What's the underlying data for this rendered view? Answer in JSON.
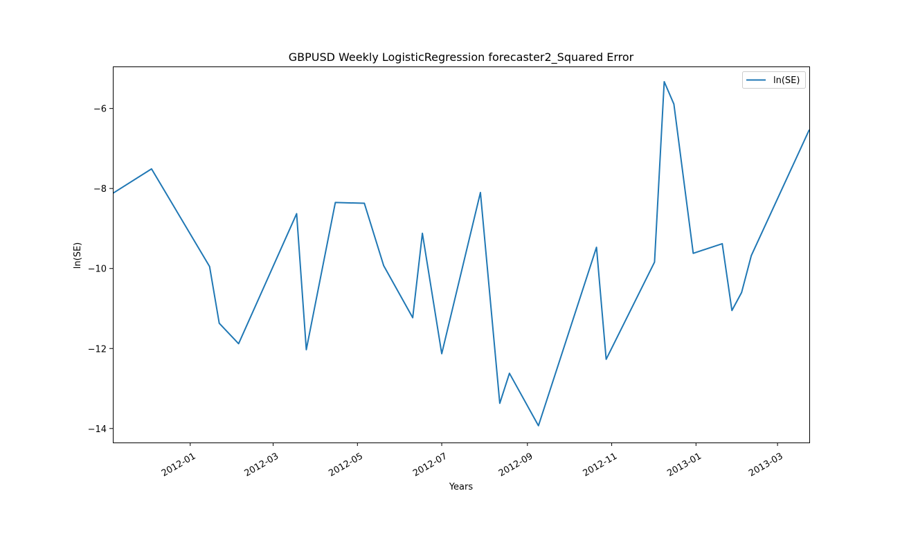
{
  "chart_data": {
    "type": "line",
    "title": "GBPUSD Weekly LogisticRegression forecaster2_Squared Error",
    "xlabel": "Years",
    "ylabel": "ln(SE)",
    "xlim": [
      "2011-11-06",
      "2013-03-24"
    ],
    "ylim": [
      -14.35,
      -4.95
    ],
    "x_ticks": [
      "2012-01-01",
      "2012-03-01",
      "2012-05-01",
      "2012-07-01",
      "2012-09-01",
      "2012-11-01",
      "2013-01-01",
      "2013-03-01"
    ],
    "x_tick_labels": [
      "2012-01",
      "2012-03",
      "2012-05",
      "2012-07",
      "2012-09",
      "2012-11",
      "2013-01",
      "2013-03"
    ],
    "y_ticks": [
      -14,
      -12,
      -10,
      -8,
      -6
    ],
    "y_tick_labels": [
      "−14",
      "−12",
      "−10",
      "−8",
      "−6"
    ],
    "grid": false,
    "legend": {
      "position": "top-right"
    },
    "color": "#1f77b4",
    "series": [
      {
        "name": "ln(SE)",
        "x": [
          "2011-11-06",
          "2011-12-04",
          "2012-01-15",
          "2012-01-22",
          "2012-02-05",
          "2012-03-18",
          "2012-03-25",
          "2012-04-15",
          "2012-05-06",
          "2012-05-20",
          "2012-06-10",
          "2012-06-17",
          "2012-07-01",
          "2012-07-29",
          "2012-08-12",
          "2012-08-19",
          "2012-09-09",
          "2012-10-21",
          "2012-10-28",
          "2012-12-02",
          "2012-12-09",
          "2012-12-16",
          "2012-12-30",
          "2013-01-20",
          "2013-01-27",
          "2013-02-03",
          "2013-02-10",
          "2013-03-24"
        ],
        "y": [
          -8.12,
          -7.51,
          -9.95,
          -11.37,
          -11.88,
          -8.63,
          -12.03,
          -8.35,
          -8.37,
          -9.93,
          -11.23,
          -9.12,
          -12.13,
          -8.1,
          -13.37,
          -12.62,
          -13.93,
          -9.47,
          -12.27,
          -9.84,
          -5.33,
          -5.89,
          -9.62,
          -9.38,
          -11.05,
          -10.6,
          -9.68,
          -6.53
        ]
      }
    ]
  }
}
